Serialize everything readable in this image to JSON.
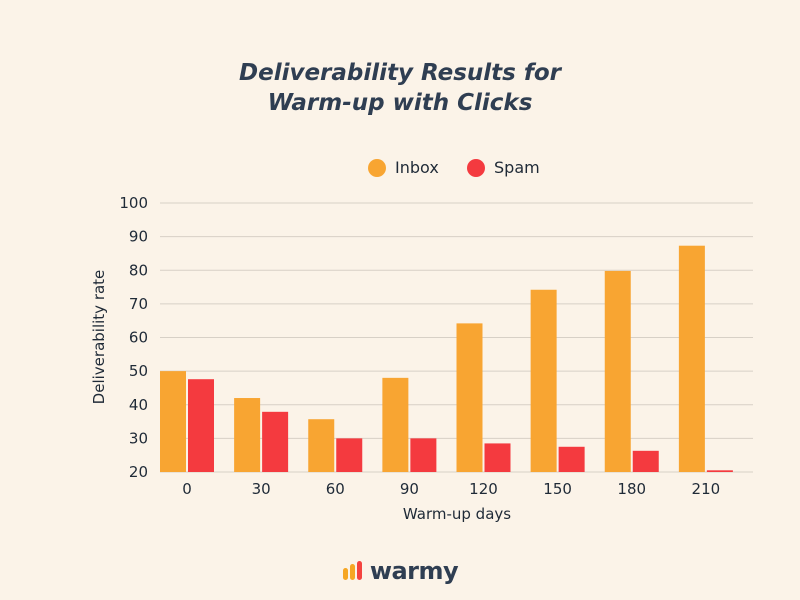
{
  "title_lines": [
    "Deliverability Results for",
    "Warm-up with Clicks"
  ],
  "brand": {
    "name": "warmy",
    "icon": "flame-bars-icon",
    "colors": [
      "#f6a623",
      "#f4433f"
    ]
  },
  "colors": {
    "inbox": "#f8a532",
    "spam": "#f43a3f",
    "grid": "#d7d0c6",
    "background": "#fbf3e8"
  },
  "chart_data": {
    "type": "bar",
    "title": "Deliverability Results for Warm-up with Clicks",
    "xlabel": "Warm-up days",
    "ylabel": "Deliverability rate",
    "categories": [
      "0",
      "30",
      "60",
      "90",
      "120",
      "150",
      "180",
      "210"
    ],
    "series": [
      {
        "name": "Inbox",
        "color": "#f8a532",
        "values": [
          50,
          42,
          35.7,
          48,
          64.2,
          74.2,
          79.8,
          87.3
        ]
      },
      {
        "name": "Spam",
        "color": "#f43a3f",
        "values": [
          47.6,
          37.9,
          30,
          30,
          28.5,
          27.5,
          26.3,
          20.5
        ]
      }
    ],
    "ylim": [
      20,
      100
    ],
    "yticks": [
      20,
      30,
      40,
      50,
      60,
      70,
      80,
      90,
      100
    ],
    "grid": true,
    "legend": "top"
  }
}
